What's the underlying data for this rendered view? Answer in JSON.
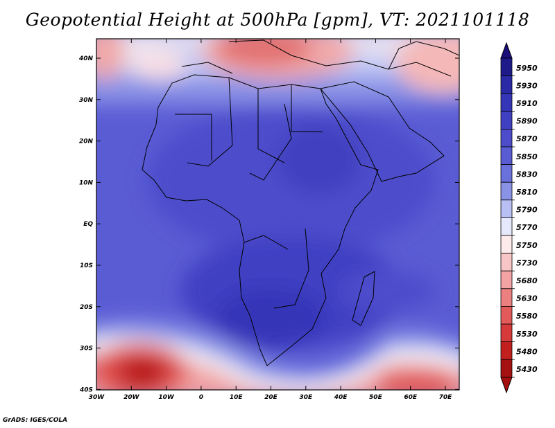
{
  "title": "Geopotential Height at 500hPa [gpm], VT: 2021101118",
  "credit": "GrADS: IGES/COLA",
  "map": {
    "lat_labels": [
      "40N",
      "30N",
      "20N",
      "10N",
      "EQ",
      "10S",
      "20S",
      "30S",
      "40S"
    ],
    "lon_labels": [
      "30W",
      "20W",
      "10W",
      "0",
      "10E",
      "20E",
      "30E",
      "40E",
      "50E",
      "60E",
      "70E"
    ]
  },
  "colorbar": {
    "levels": [
      "5950",
      "5930",
      "5910",
      "5890",
      "5870",
      "5850",
      "5830",
      "5810",
      "5790",
      "5770",
      "5750",
      "5730",
      "5680",
      "5630",
      "5580",
      "5530",
      "5480",
      "5430"
    ],
    "colors": [
      "#1f1a8a",
      "#2a2aa6",
      "#3535b8",
      "#4040c3",
      "#4d4dcc",
      "#5a5cd4",
      "#6a70dc",
      "#8a92e6",
      "#b8bff2",
      "#e6e8fb",
      "#fdeaea",
      "#f8c6c6",
      "#f3a3a3",
      "#ec7f7f",
      "#e35a5a",
      "#d63a3a",
      "#c21f1f",
      "#a51010"
    ],
    "top_color": "#1a0f7a",
    "bottom_color": "#a50f0f"
  }
}
